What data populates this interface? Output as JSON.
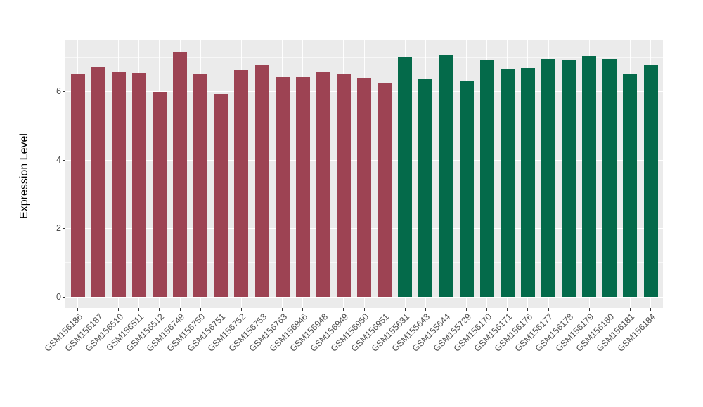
{
  "chart_data": {
    "type": "bar",
    "title": "",
    "xlabel": "",
    "ylabel": "Expression Level",
    "categories": [
      "GSM156186",
      "GSM156187",
      "GSM156510",
      "GSM156511",
      "GSM156512",
      "GSM156749",
      "GSM156750",
      "GSM156751",
      "GSM156752",
      "GSM156753",
      "GSM156763",
      "GSM156946",
      "GSM156948",
      "GSM156949",
      "GSM156950",
      "GSM156951",
      "GSM155631",
      "GSM155643",
      "GSM155644",
      "GSM155729",
      "GSM156170",
      "GSM156171",
      "GSM156176",
      "GSM156177",
      "GSM156178",
      "GSM156179",
      "GSM156180",
      "GSM156181",
      "GSM156184"
    ],
    "values": [
      6.49,
      6.71,
      6.58,
      6.53,
      5.97,
      7.15,
      6.52,
      5.92,
      6.62,
      6.75,
      6.4,
      6.4,
      6.56,
      6.51,
      6.38,
      6.24,
      7.0,
      6.36,
      7.07,
      6.31,
      6.9,
      6.65,
      6.68,
      6.95,
      6.93,
      7.03,
      6.94,
      6.52,
      6.77
    ],
    "bar_group_index": [
      0,
      0,
      0,
      0,
      0,
      0,
      0,
      0,
      0,
      0,
      0,
      0,
      0,
      0,
      0,
      0,
      1,
      1,
      1,
      1,
      1,
      1,
      1,
      1,
      1,
      1,
      1,
      1,
      1
    ],
    "group_colors": [
      "#9D4353",
      "#046A4A"
    ],
    "yticks_major": [
      0,
      2,
      4,
      6
    ],
    "yticks_minor": [
      1,
      3,
      5,
      7
    ],
    "ylim": [
      0,
      7.49
    ],
    "legend": "none",
    "grid": "on",
    "panel_background": "#EBEBEB",
    "gridline_color": "#ffffff",
    "axis_text_color": "#4d4d4d"
  }
}
